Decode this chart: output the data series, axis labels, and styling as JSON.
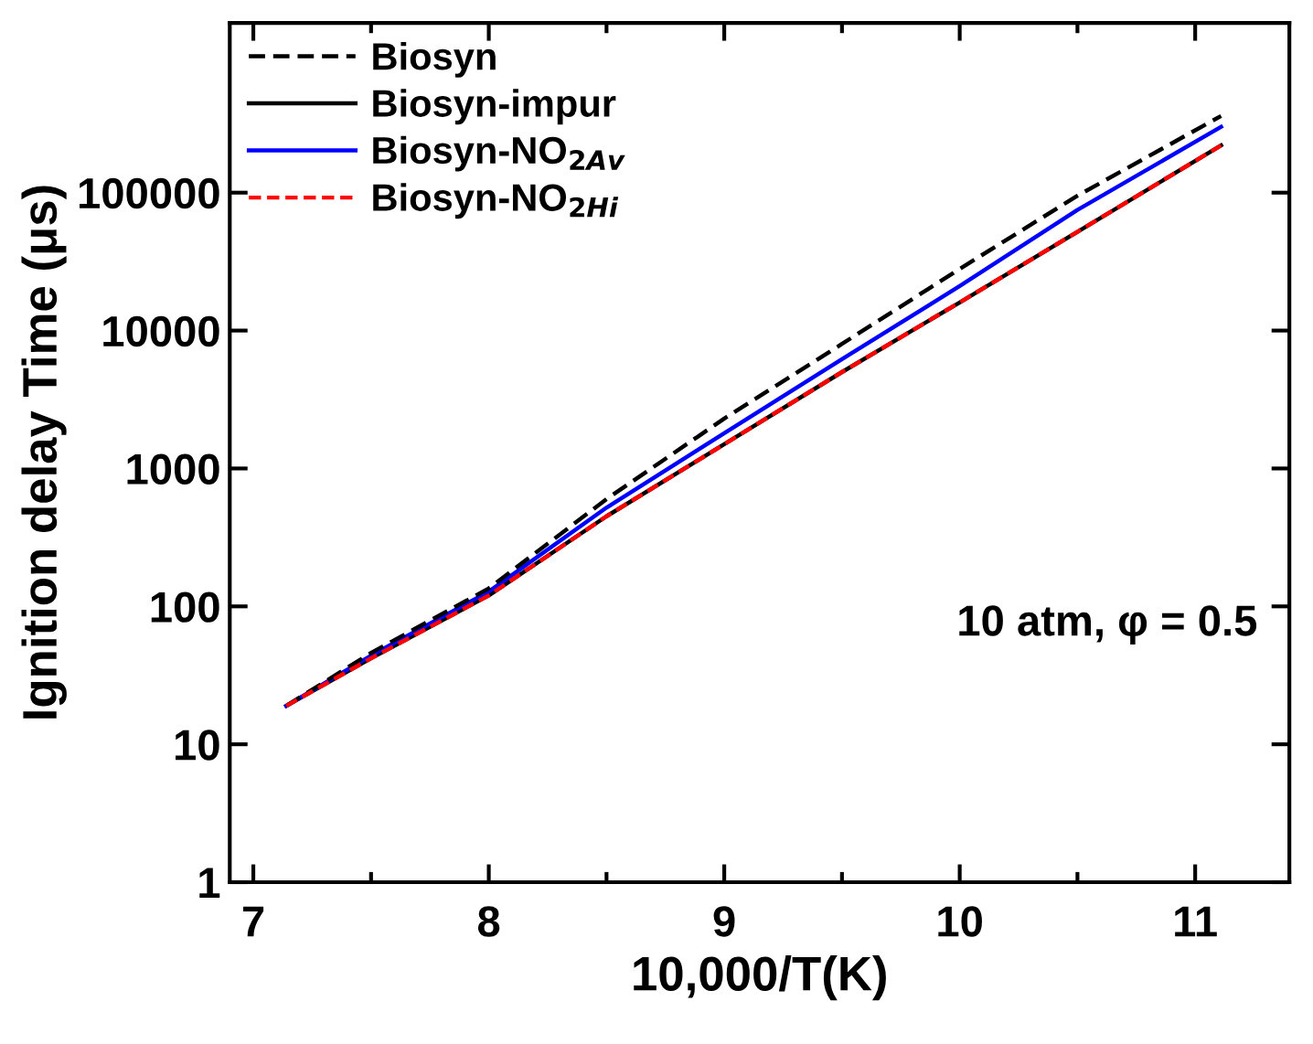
{
  "chart_data": {
    "type": "line",
    "xlabel": "10,000/T(K)",
    "ylabel": "Ignition delay Time (μs)",
    "log": "y",
    "xlim": [
      6.9,
      11.4
    ],
    "xticks": [
      7,
      8,
      9,
      10,
      11
    ],
    "ylim": [
      1,
      1700000
    ],
    "yticks": [
      1,
      10,
      100,
      1000,
      10000,
      100000
    ],
    "legend": "top left",
    "grid": false,
    "annotations": [
      "10 atm, φ = 0.5"
    ],
    "x": [
      7.14,
      7.5,
      8.0,
      8.5,
      9.0,
      9.5,
      10.0,
      10.5,
      11.11
    ],
    "series": [
      {
        "name": "Biosyn",
        "color": "#000000",
        "line_style": "dashed",
        "values": [
          19,
          46,
          135,
          600,
          2300,
          8000,
          28000,
          95000,
          360000
        ]
      },
      {
        "name": "Biosyn-impur",
        "color": "#000000",
        "line_style": "solid",
        "values": [
          19,
          42,
          120,
          450,
          1500,
          5000,
          16000,
          52000,
          220000
        ]
      },
      {
        "name": "Biosyn-NO$_{2Av}$",
        "color": "#0000ff",
        "line_style": "solid",
        "values": [
          19,
          44,
          128,
          520,
          1800,
          6200,
          21000,
          75000,
          300000
        ]
      },
      {
        "name": "Biosyn-NO$_{2Hi}$",
        "color": "#ff0000",
        "line_style": "dotted",
        "values": [
          19,
          42,
          120,
          450,
          1500,
          5000,
          16000,
          52000,
          220000
        ]
      }
    ]
  }
}
